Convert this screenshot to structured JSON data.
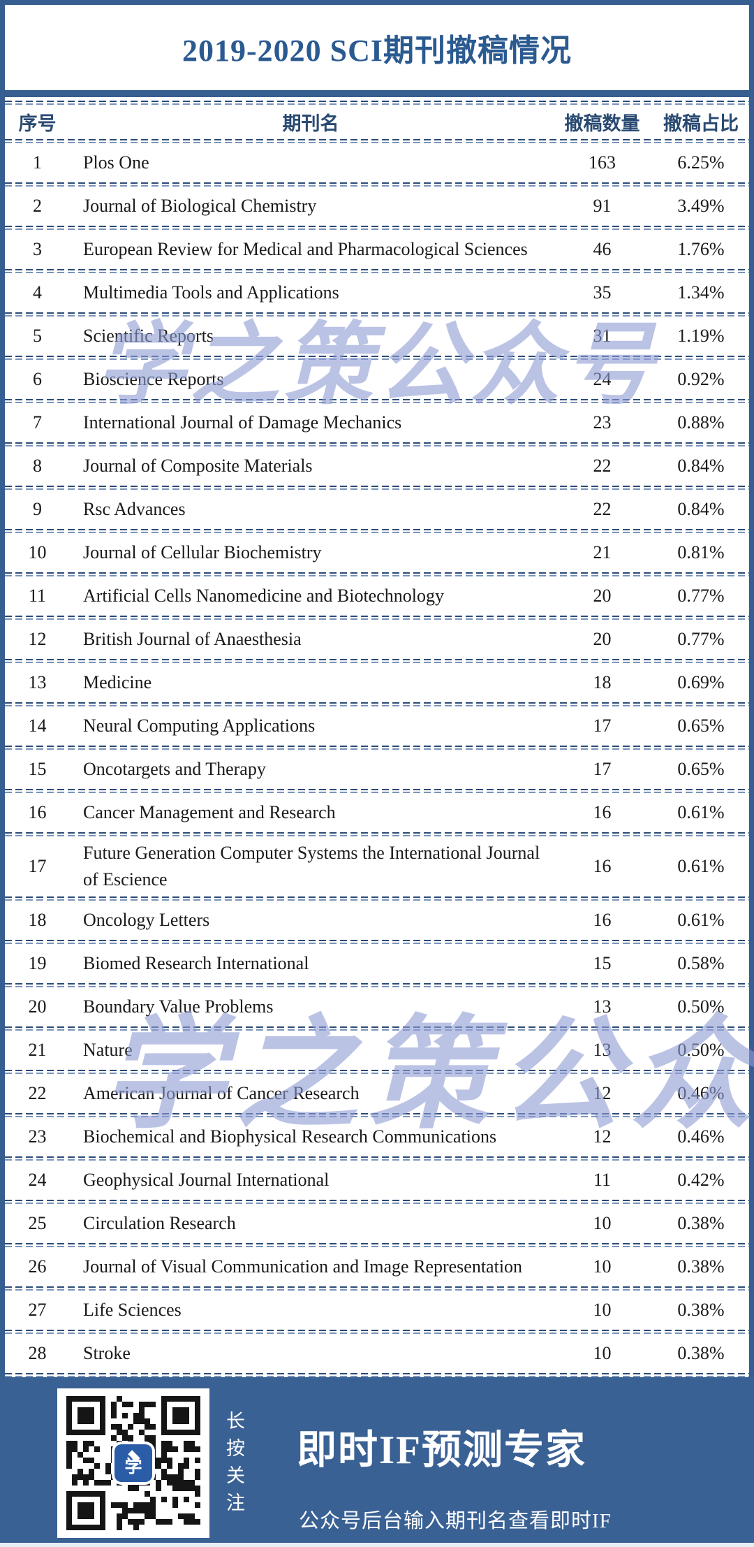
{
  "title": "2019-2020 SCI期刊撤稿情况",
  "watermark": "学之策公众号",
  "table": {
    "headers": [
      "序号",
      "期刊名",
      "撤稿数量",
      "撤稿占比"
    ],
    "rows": [
      {
        "no": "1",
        "journal": "Plos One",
        "count": "163",
        "pct": "6.25%"
      },
      {
        "no": "2",
        "journal": "Journal of Biological Chemistry",
        "count": "91",
        "pct": "3.49%"
      },
      {
        "no": "3",
        "journal": "European Review for Medical and Pharmacological Sciences",
        "count": "46",
        "pct": "1.76%"
      },
      {
        "no": "4",
        "journal": "Multimedia Tools and Applications",
        "count": "35",
        "pct": "1.34%"
      },
      {
        "no": "5",
        "journal": "Scientific Reports",
        "count": "31",
        "pct": "1.19%"
      },
      {
        "no": "6",
        "journal": "Bioscience Reports",
        "count": "24",
        "pct": "0.92%"
      },
      {
        "no": "7",
        "journal": "International Journal of Damage Mechanics",
        "count": "23",
        "pct": "0.88%"
      },
      {
        "no": "8",
        "journal": "Journal of Composite Materials",
        "count": "22",
        "pct": "0.84%"
      },
      {
        "no": "9",
        "journal": "Rsc Advances",
        "count": "22",
        "pct": "0.84%"
      },
      {
        "no": "10",
        "journal": "Journal of Cellular Biochemistry",
        "count": "21",
        "pct": "0.81%"
      },
      {
        "no": "11",
        "journal": "Artificial Cells Nanomedicine and Biotechnology",
        "count": "20",
        "pct": "0.77%"
      },
      {
        "no": "12",
        "journal": "British Journal of Anaesthesia",
        "count": "20",
        "pct": "0.77%"
      },
      {
        "no": "13",
        "journal": "Medicine",
        "count": "18",
        "pct": "0.69%"
      },
      {
        "no": "14",
        "journal": "Neural Computing Applications",
        "count": "17",
        "pct": "0.65%"
      },
      {
        "no": "15",
        "journal": "Oncotargets and Therapy",
        "count": "17",
        "pct": "0.65%"
      },
      {
        "no": "16",
        "journal": "Cancer Management and Research",
        "count": "16",
        "pct": "0.61%"
      },
      {
        "no": "17",
        "journal": "Future Generation Computer Systems the International Journal of Escience",
        "count": "16",
        "pct": "0.61%"
      },
      {
        "no": "18",
        "journal": "Oncology Letters",
        "count": "16",
        "pct": "0.61%"
      },
      {
        "no": "19",
        "journal": "Biomed Research International",
        "count": "15",
        "pct": "0.58%"
      },
      {
        "no": "20",
        "journal": "Boundary Value Problems",
        "count": "13",
        "pct": "0.50%"
      },
      {
        "no": "21",
        "journal": "Nature",
        "count": "13",
        "pct": "0.50%"
      },
      {
        "no": "22",
        "journal": "American Journal of Cancer Research",
        "count": "12",
        "pct": "0.46%"
      },
      {
        "no": "23",
        "journal": "Biochemical and Biophysical Research Communications",
        "count": "12",
        "pct": "0.46%"
      },
      {
        "no": "24",
        "journal": "Geophysical Journal International",
        "count": "11",
        "pct": "0.42%"
      },
      {
        "no": "25",
        "journal": "Circulation Research",
        "count": "10",
        "pct": "0.38%"
      },
      {
        "no": "26",
        "journal": "Journal of Visual Communication and Image Representation",
        "count": "10",
        "pct": "0.38%"
      },
      {
        "no": "27",
        "journal": "Life Sciences",
        "count": "10",
        "pct": "0.38%"
      },
      {
        "no": "28",
        "journal": "Stroke",
        "count": "10",
        "pct": "0.38%"
      }
    ]
  },
  "footer": {
    "qr_caption_vertical": "长按关注",
    "headline": "即时IF预测专家",
    "subline": "公众号后台输入期刊名查看即时IF",
    "qr_logo_char": "学"
  },
  "colors": {
    "frame_blue": "#375e90",
    "footer_blue": "#3a6194",
    "title_text": "#2b5a91",
    "header_text": "#2a4a72",
    "separator_dark": "#2b4b76",
    "separator_light": "#7b94ba",
    "watermark": "#8e9cd4",
    "qr_logo_blue": "#2b5ca8",
    "body_text": "#1a1a1a"
  }
}
